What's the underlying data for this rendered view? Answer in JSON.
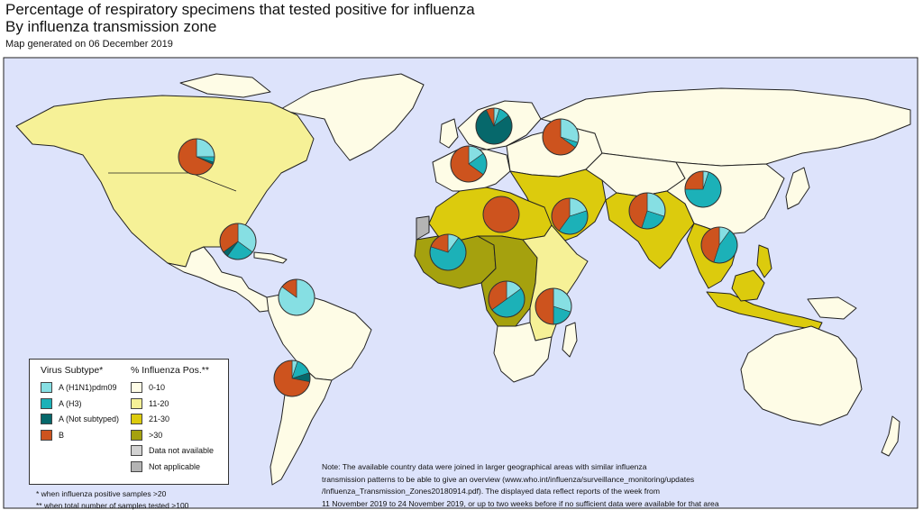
{
  "header": {
    "title_line1": "Percentage of respiratory specimens that tested positive for influenza",
    "title_line2": "By influenza transmission zone",
    "subtitle": "Map generated on 06 December 2019"
  },
  "colors": {
    "ocean": "#dde3fb",
    "pct_0_10": "#fefce6",
    "pct_11_20": "#f6f197",
    "pct_21_30": "#dccb0d",
    "pct_gt30": "#a5a10e",
    "no_data": "#d2d2d2",
    "not_applicable": "#b4b4b4",
    "h1n1": "#86dfe3",
    "h3": "#1cb1b8",
    "a_not_subtyped": "#06686b",
    "b": "#cd531e"
  },
  "legend": {
    "virus_title": "Virus Subtype*",
    "virus_items": [
      {
        "label": "A (H1N1)pdm09",
        "color": "#86dfe3"
      },
      {
        "label": "A (H3)",
        "color": "#1cb1b8"
      },
      {
        "label": "A (Not subtyped)",
        "color": "#06686b"
      },
      {
        "label": "B",
        "color": "#cd531e"
      }
    ],
    "pct_title": "% Influenza Pos.**",
    "pct_items": [
      {
        "label": "0-10",
        "color": "#fefce6"
      },
      {
        "label": "11-20",
        "color": "#f6f197"
      },
      {
        "label": "21-30",
        "color": "#dccb0d"
      },
      {
        "label": ">30",
        "color": "#a5a10e"
      },
      {
        "label": "Data not available",
        "color": "#d2d2d2"
      },
      {
        "label": "Not applicable",
        "color": "#b4b4b4"
      }
    ]
  },
  "footnotes": {
    "line1": "* when influenza positive samples >20",
    "line2": "** when total number of samples tested >100"
  },
  "note": {
    "line1": "Note: The available country data were joined in larger geographical areas with similar influenza",
    "line2": "transmission patterns to be able to give an overview (www.who.int/influenza/surveillance_monitoring/updates",
    "line3": "/Influenza_Transmission_Zones20180914.pdf). The displayed data reflect reports of the week from",
    "line4": "11 November 2019 to 24 November 2019, or up to two weeks before if no sufficient data were available for that area"
  },
  "pies": [
    {
      "zone": "north-america",
      "slices": [
        0.25,
        0.05,
        0.02,
        0.68
      ]
    },
    {
      "zone": "central-america-caribbean",
      "slices": [
        0.35,
        0.25,
        0.05,
        0.35
      ]
    },
    {
      "zone": "tropical-south-america",
      "slices": [
        0.85,
        0.0,
        0.0,
        0.15
      ]
    },
    {
      "zone": "temperate-south-america",
      "slices": [
        0.05,
        0.15,
        0.08,
        0.72
      ]
    },
    {
      "zone": "northern-europe",
      "slices": [
        0.05,
        0.1,
        0.78,
        0.07
      ]
    },
    {
      "zone": "eastern-europe",
      "slices": [
        0.3,
        0.05,
        0.0,
        0.65
      ]
    },
    {
      "zone": "south-west-europe",
      "slices": [
        0.15,
        0.2,
        0.0,
        0.65
      ]
    },
    {
      "zone": "northern-africa",
      "slices": [
        0.0,
        0.0,
        0.0,
        1.0
      ]
    },
    {
      "zone": "western-asia",
      "slices": [
        0.2,
        0.4,
        0.0,
        0.4
      ]
    },
    {
      "zone": "southern-asia",
      "slices": [
        0.3,
        0.25,
        0.0,
        0.45
      ]
    },
    {
      "zone": "eastern-asia",
      "slices": [
        0.05,
        0.7,
        0.0,
        0.25
      ]
    },
    {
      "zone": "south-east-asia",
      "slices": [
        0.1,
        0.45,
        0.0,
        0.45
      ]
    },
    {
      "zone": "western-africa",
      "slices": [
        0.1,
        0.7,
        0.0,
        0.2
      ]
    },
    {
      "zone": "middle-africa",
      "slices": [
        0.15,
        0.5,
        0.0,
        0.35
      ]
    },
    {
      "zone": "eastern-africa",
      "slices": [
        0.3,
        0.2,
        0.0,
        0.5
      ]
    }
  ]
}
